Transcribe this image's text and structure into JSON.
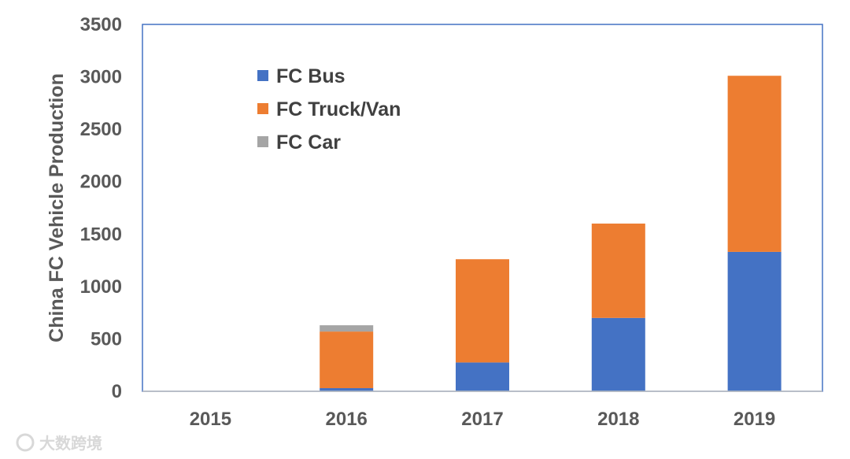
{
  "chart_data": {
    "type": "bar",
    "stacked": true,
    "title": "",
    "xlabel": "",
    "ylabel": "China FC Vehicle Production",
    "categories": [
      "2015",
      "2016",
      "2017",
      "2018",
      "2019"
    ],
    "series": [
      {
        "name": "FC Bus",
        "color": "#4472C4",
        "values": [
          0,
          30,
          275,
          700,
          1330
        ]
      },
      {
        "name": "FC Truck/Van",
        "color": "#ED7D31",
        "values": [
          0,
          540,
          985,
          900,
          1680
        ]
      },
      {
        "name": "FC Car",
        "color": "#A5A5A5",
        "values": [
          0,
          60,
          0,
          0,
          0
        ]
      }
    ],
    "ylim": [
      0,
      3500
    ],
    "yticks": [
      "0",
      "500",
      "1000",
      "1500",
      "2000",
      "2500",
      "3000",
      "3500"
    ],
    "grid": false,
    "legend_position": "upper-left inside"
  },
  "watermark": {
    "text": "大数跨境"
  }
}
